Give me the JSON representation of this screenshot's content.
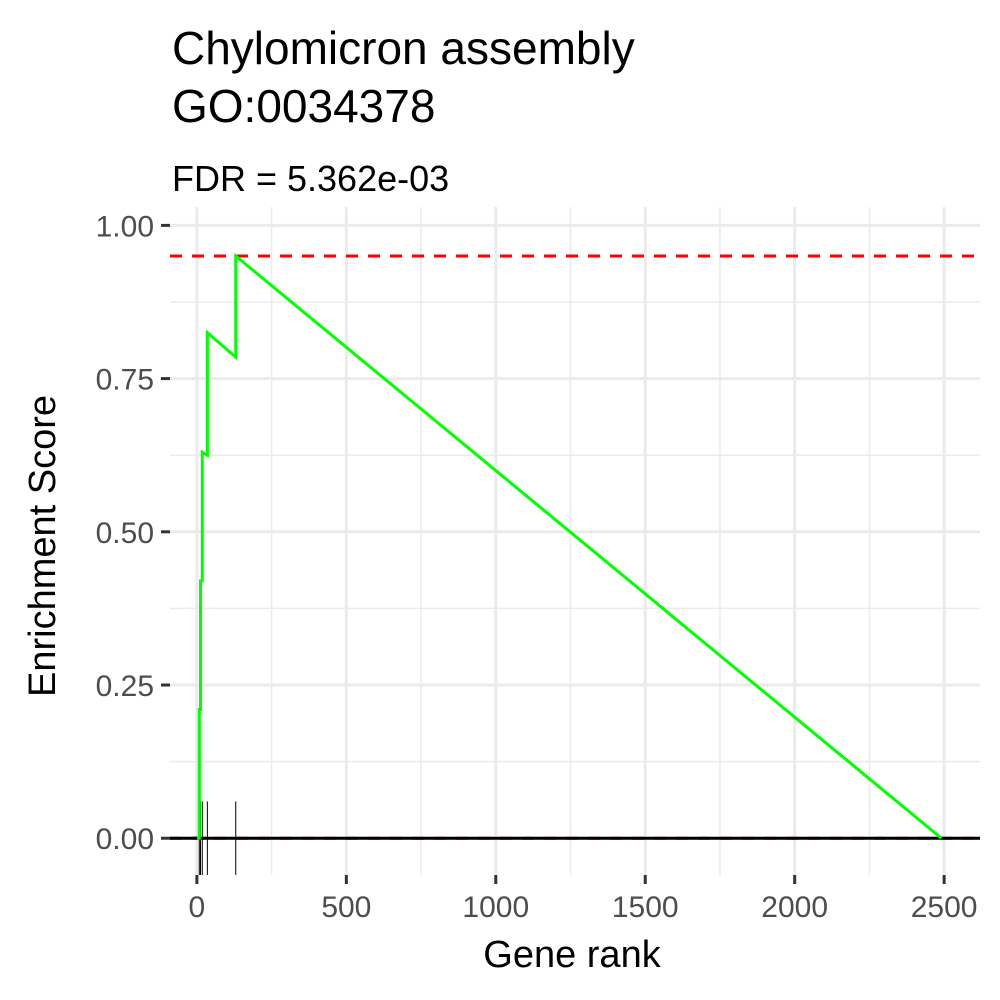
{
  "chart_data": {
    "type": "line",
    "title": [
      "Chylomicron assembly",
      "GO:0034378"
    ],
    "subtitle": "FDR = 5.362e-03",
    "xlabel": "Gene rank",
    "ylabel": "Enrichment Score",
    "xlim": [
      -90,
      2620
    ],
    "ylim": [
      -0.06,
      1.03
    ],
    "x_ticks": [
      0,
      500,
      1000,
      1500,
      2000,
      2500
    ],
    "x_tick_labels": [
      "0",
      "500",
      "1000",
      "1500",
      "2000",
      "2500"
    ],
    "y_ticks": [
      0,
      0.25,
      0.5,
      0.75,
      1
    ],
    "y_tick_labels": [
      "0.00",
      "0.25",
      "0.50",
      "0.75",
      "1.00"
    ],
    "grid": true,
    "series": [
      {
        "color": "#00ff00",
        "points": [
          [
            0,
            0
          ],
          [
            8,
            0
          ],
          [
            8,
            0.21
          ],
          [
            12,
            0.21
          ],
          [
            12,
            0.42
          ],
          [
            18,
            0.42
          ],
          [
            18,
            0.63
          ],
          [
            35,
            0.625
          ],
          [
            35,
            0.825
          ],
          [
            130,
            0.785
          ],
          [
            130,
            0.95
          ],
          [
            2491,
            0
          ]
        ]
      }
    ],
    "hit_ranks": [
      8,
      12,
      18,
      35,
      130
    ],
    "hlines": [
      {
        "y": 0.95,
        "color": "#ff0000",
        "style": "dashed"
      },
      {
        "y": 0,
        "color": "#ff0000",
        "style": "dashed"
      },
      {
        "y": 0,
        "color": "#000000",
        "style": "solid"
      }
    ]
  }
}
